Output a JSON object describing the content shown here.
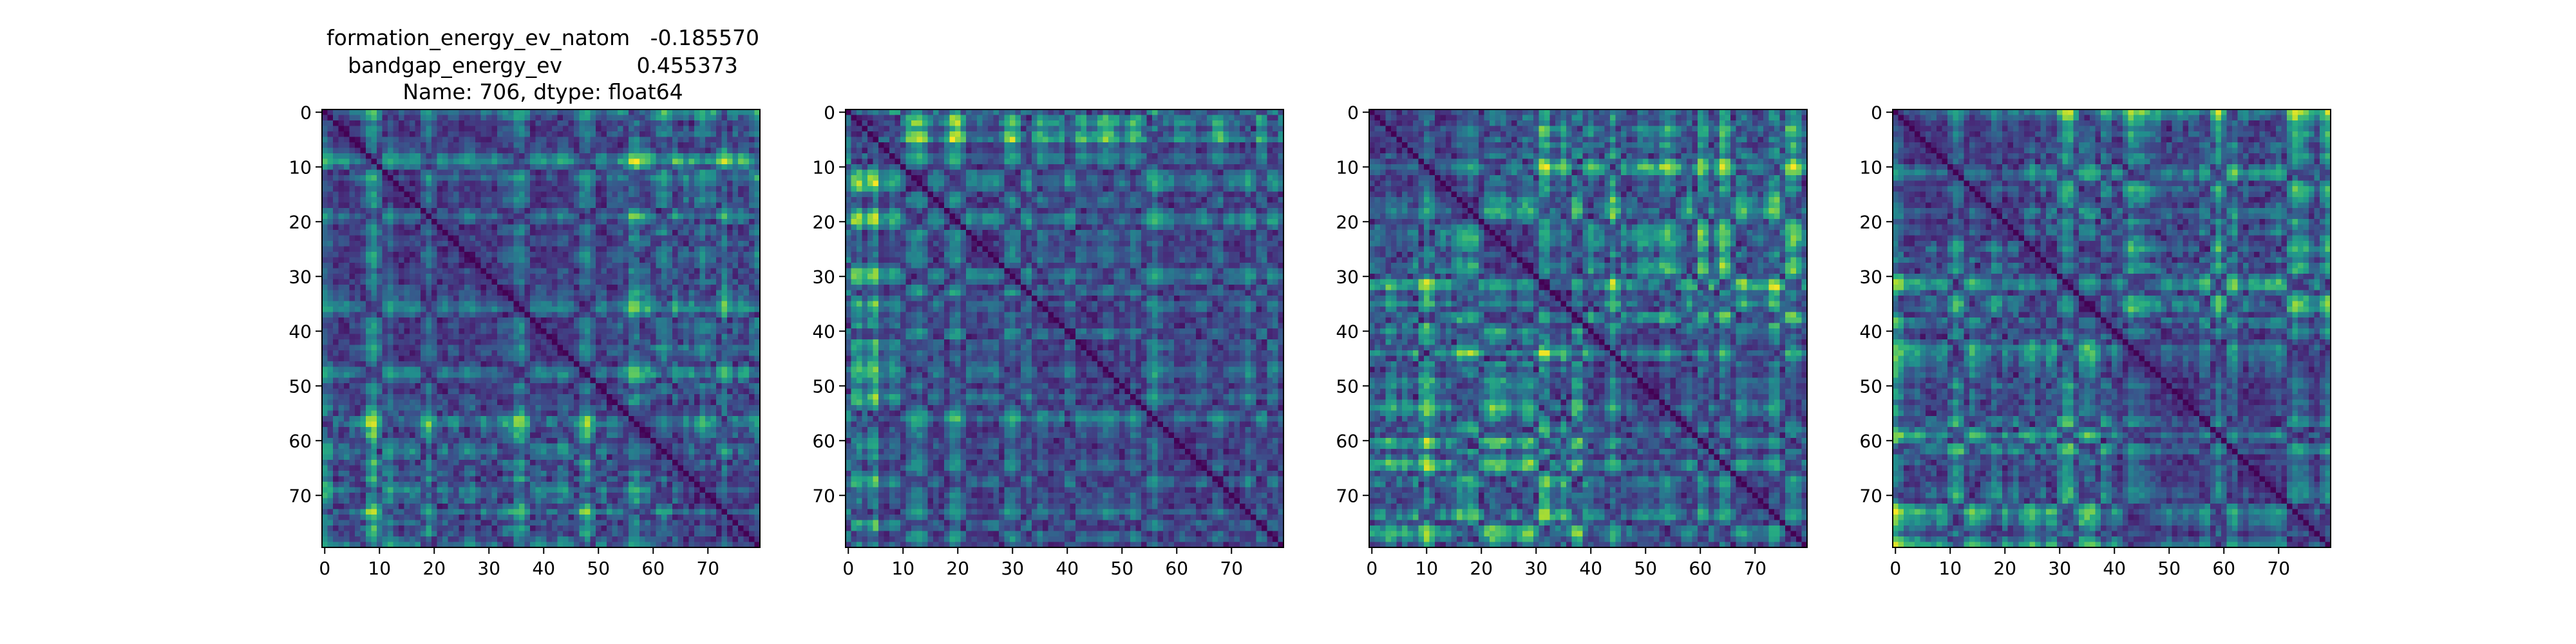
{
  "figure": {
    "title_lines": [
      "formation_energy_ev_natom   -0.185570",
      "bandgap_energy_ev           0.455373",
      "Name: 706, dtype: float64"
    ]
  },
  "chart_data": [
    {
      "type": "heatmap",
      "title": "",
      "xlabel": "",
      "ylabel": "",
      "rows": 80,
      "cols": 80,
      "xlim": [
        0,
        79
      ],
      "ylim": [
        79,
        0
      ],
      "x_ticks": [
        0,
        10,
        20,
        30,
        40,
        50,
        60,
        70
      ],
      "y_ticks": [
        0,
        10,
        20,
        30,
        40,
        50,
        60,
        70
      ],
      "colormap": "viridis",
      "diagonal": "min",
      "block_boundaries": [
        54,
        66
      ],
      "seed": 706
    },
    {
      "type": "heatmap",
      "title": "",
      "xlabel": "",
      "ylabel": "",
      "rows": 80,
      "cols": 80,
      "xlim": [
        0,
        79
      ],
      "ylim": [
        79,
        0
      ],
      "x_ticks": [
        0,
        10,
        20,
        30,
        40,
        50,
        60,
        70
      ],
      "y_ticks": [
        0,
        10,
        20,
        30,
        40,
        50,
        60,
        70
      ],
      "colormap": "viridis",
      "diagonal": "min",
      "block_boundaries": [
        6
      ],
      "seed": 1706
    },
    {
      "type": "heatmap",
      "title": "",
      "xlabel": "",
      "ylabel": "",
      "rows": 80,
      "cols": 80,
      "xlim": [
        0,
        79
      ],
      "ylim": [
        79,
        0
      ],
      "x_ticks": [
        0,
        10,
        20,
        30,
        40,
        50,
        60,
        70
      ],
      "y_ticks": [
        0,
        10,
        20,
        30,
        40,
        50,
        60,
        70
      ],
      "colormap": "viridis",
      "diagonal": "min",
      "block_boundaries": [
        21,
        40
      ],
      "seed": 2706
    },
    {
      "type": "heatmap",
      "title": "",
      "xlabel": "",
      "ylabel": "",
      "rows": 80,
      "cols": 80,
      "xlim": [
        0,
        79
      ],
      "ylim": [
        79,
        0
      ],
      "x_ticks": [
        0,
        10,
        20,
        30,
        40,
        50,
        60,
        70
      ],
      "y_ticks": [
        0,
        10,
        20,
        30,
        40,
        50,
        60,
        70
      ],
      "colormap": "viridis",
      "diagonal": "min",
      "block_boundaries": [
        24,
        41
      ],
      "seed": 3706
    }
  ]
}
